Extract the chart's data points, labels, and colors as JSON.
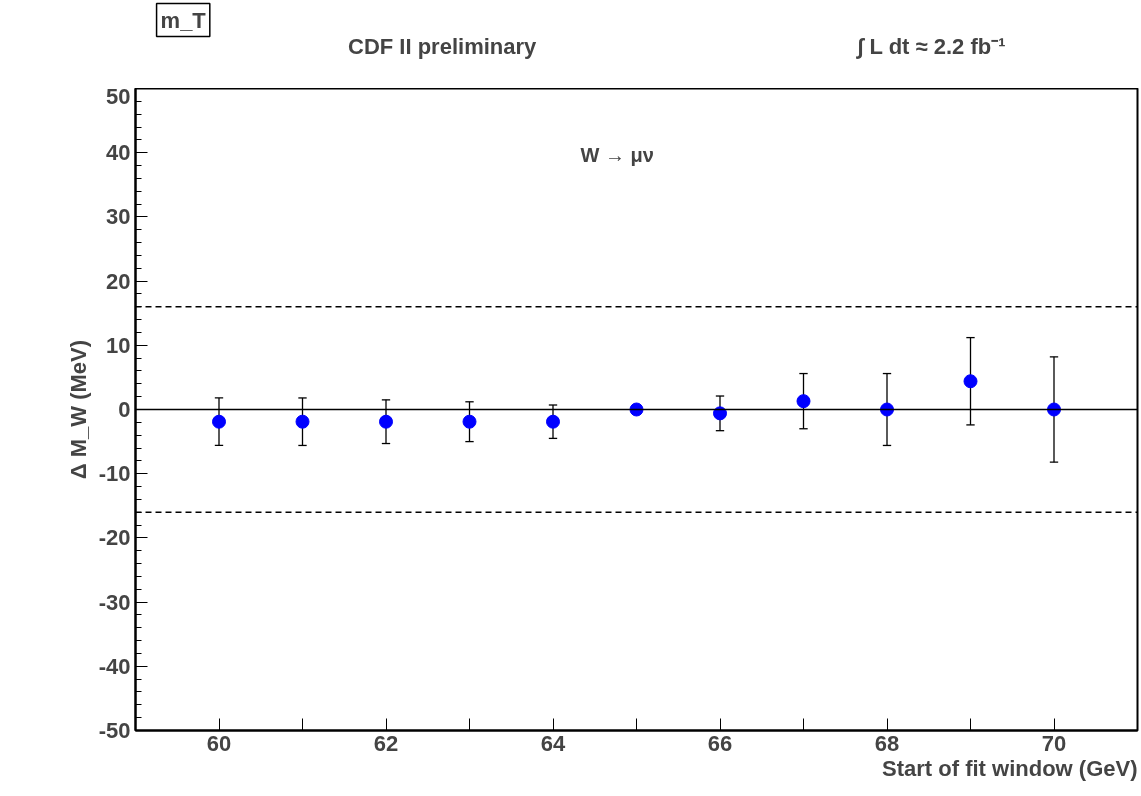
{
  "chart_data": {
    "type": "scatter",
    "title": "CDF II preliminary",
    "xlabel": "Start of fit window (GeV)",
    "ylabel": "Δ M_W (MeV)",
    "annotations": [
      "m_T",
      "∫ L dt ≈ 2.2 fb⁻¹",
      "W → μν"
    ],
    "x": [
      60,
      61,
      62,
      63,
      64,
      65,
      66,
      67,
      68,
      69,
      70
    ],
    "series": [
      {
        "color": "#0000ff",
        "values": [
          -1.9,
          -1.9,
          -1.9,
          -1.9,
          -1.9,
          0,
          -0.6,
          1.3,
          0,
          4.4,
          0
        ],
        "errors": [
          3.7,
          3.7,
          3.4,
          3.1,
          2.6,
          null,
          2.7,
          4.3,
          5.6,
          6.8,
          8.2
        ]
      }
    ],
    "xlim": [
      59,
      71
    ],
    "ylim": [
      -50,
      50
    ],
    "xticks": [
      60,
      {
        "value": 61,
        "label": null
      },
      62,
      {
        "value": 63,
        "label": null
      },
      64,
      {
        "value": 65,
        "label": null
      },
      66,
      {
        "value": 67,
        "label": null
      },
      68,
      {
        "value": 69,
        "label": null
      },
      70
    ],
    "yticks": [
      -50,
      -40,
      -30,
      -20,
      -10,
      0,
      10,
      20,
      30,
      40,
      50
    ],
    "ref_lines": [
      {
        "axis": "y",
        "value": 0,
        "line_style": "solid",
        "color": "#000000"
      },
      {
        "axis": "y",
        "value": 16,
        "line_style": "dashed",
        "color": "#000000"
      },
      {
        "axis": "y",
        "value": -16,
        "line_style": "dashed",
        "color": "#000000"
      }
    ],
    "marker": "circle",
    "grid": false
  }
}
